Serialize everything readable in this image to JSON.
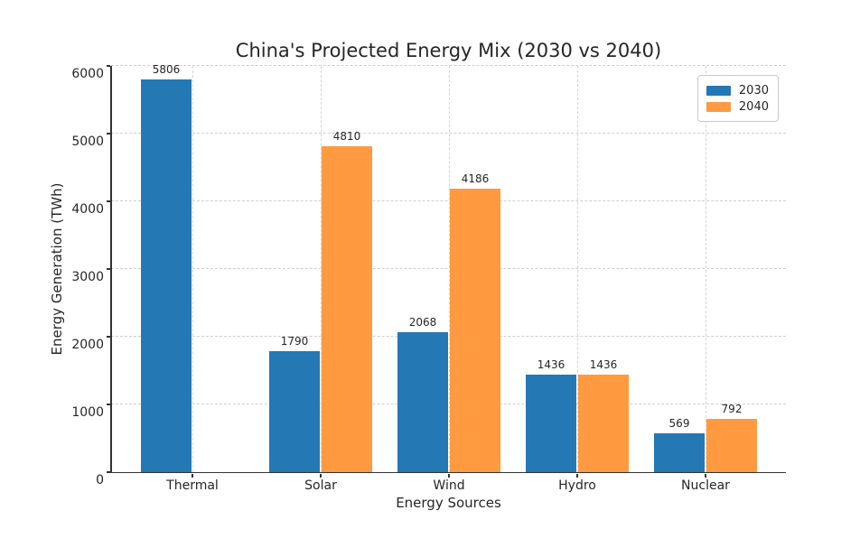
{
  "title": "China's Projected Energy Mix (2030 vs 2040)",
  "chart_data": {
    "type": "bar",
    "title": "China's Projected Energy Mix (2030 vs 2040)",
    "xlabel": "Energy Sources",
    "ylabel": "Energy Generation (TWh)",
    "categories": [
      "Thermal",
      "Solar",
      "Wind",
      "Hydro",
      "Nuclear"
    ],
    "series": [
      {
        "name": "2030",
        "color": "#2478b4",
        "values": [
          5806,
          1790,
          2068,
          1436,
          569
        ]
      },
      {
        "name": "2040",
        "color": "#ff9a40",
        "values": [
          null,
          4810,
          4186,
          1436,
          792
        ]
      }
    ],
    "ylim": [
      0,
      6000
    ],
    "yticks": [
      0,
      1000,
      2000,
      3000,
      4000,
      5000,
      6000
    ],
    "grid": true,
    "grid_style": "dashed",
    "legend_position": "upper right",
    "bar_value_labels": true
  },
  "colors": {
    "series_2030": "#2478b4",
    "series_2040": "#ff9a40",
    "text": "#262626",
    "grid": "#cfcfcf",
    "spine": "#333333",
    "legend_border": "#c9c9c9",
    "background": "#ffffff"
  }
}
